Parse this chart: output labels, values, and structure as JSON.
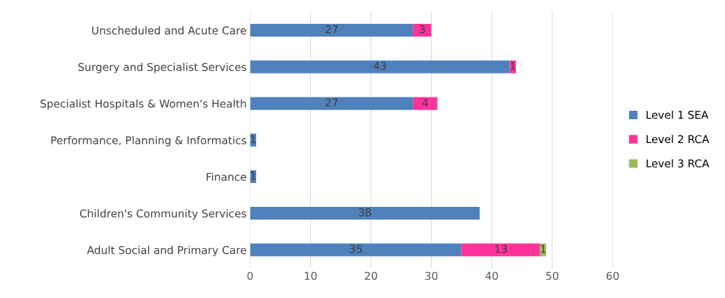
{
  "chart_data": {
    "type": "bar",
    "orientation": "horizontal",
    "stacked": true,
    "categories": [
      "Unscheduled and Acute Care",
      "Surgery and Specialist Services",
      "Specialist Hospitals & Women's Health",
      "Performance, Planning & Informatics",
      "Finance",
      "Children's Community Services",
      "Adult Social and Primary Care"
    ],
    "series": [
      {
        "name": "Level 1 SEA",
        "color": "#4f81bd",
        "values": [
          27,
          43,
          27,
          1,
          1,
          38,
          35
        ]
      },
      {
        "name": "Level 2 RCA",
        "color": "#ff3399",
        "values": [
          3,
          1,
          4,
          null,
          null,
          null,
          13
        ]
      },
      {
        "name": "Level 3 RCA",
        "color": "#9bbb59",
        "values": [
          null,
          null,
          null,
          null,
          null,
          null,
          1
        ]
      }
    ],
    "xlim": [
      0,
      60
    ],
    "xticks": [
      0,
      10,
      20,
      30,
      40,
      50,
      60
    ],
    "grid": "x",
    "legend": "right",
    "data_labels": true
  }
}
